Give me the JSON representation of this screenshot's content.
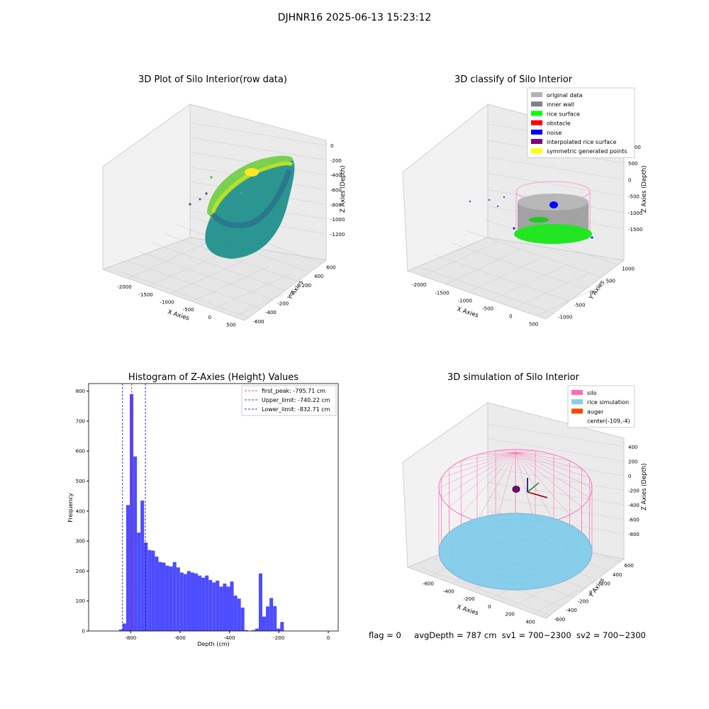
{
  "page": {
    "title": "DJHNR16 2025-06-13 15:23:12"
  },
  "status": {
    "flag": "flag = 0",
    "avg_depth": "avgDepth = 787 cm",
    "sv1": "sv1 = 700~2300",
    "sv2": "sv2 = 700~2300"
  },
  "colors": {
    "hist_bar": "#4d4dff",
    "peak_line": "#ff0000",
    "limit_line": "#0000cc",
    "pane": "#f2f2f2",
    "silo": "#ff69b4",
    "rice_sim": "#87ceeb",
    "auger": "#ff4500"
  },
  "chart_data": [
    {
      "type": "scatter3d",
      "title": "3D Plot of Silo Interior(row data)",
      "xlabel": "X Axies",
      "ylabel": "Y Axies",
      "zlabel": "Z Axies (Depth)",
      "x_ticks": [
        "-2000",
        "-1500",
        "-1000",
        "-500",
        "0",
        "500"
      ],
      "y_ticks": [
        "-600",
        "-400",
        "-200",
        "0",
        "200",
        "400",
        "600"
      ],
      "z_ticks": [
        "-1200",
        "-1000",
        "-800",
        "-600",
        "-400",
        "-200",
        "0"
      ],
      "xlim": [
        -2300,
        700
      ],
      "ylim": [
        -700,
        700
      ],
      "zlim": [
        -1300,
        50
      ],
      "colormap": "viridis"
    },
    {
      "type": "scatter3d",
      "title": "3D classify of Silo Interior",
      "xlabel": "X Axies",
      "ylabel": "Y Axies",
      "zlabel": "Z Axies (Depth)",
      "x_ticks": [
        "-2000",
        "-1500",
        "-1000",
        "-500",
        "0",
        "500"
      ],
      "y_ticks": [
        "-1000",
        "-500",
        "0",
        "500",
        "1000"
      ],
      "z_ticks": [
        "-1500",
        "-1000",
        "-500",
        "0",
        "500",
        "1000"
      ],
      "legend_position": "top-right",
      "legend": [
        {
          "label": "original data",
          "color": "#b3b3b3"
        },
        {
          "label": "inner wall",
          "color": "#808080"
        },
        {
          "label": "rice surface",
          "color": "#00ff00"
        },
        {
          "label": "obstacle",
          "color": "#ff0000"
        },
        {
          "label": "noise",
          "color": "#0000ff"
        },
        {
          "label": "interpolated rice surface",
          "color": "#800080"
        },
        {
          "label": "symmetric generated points",
          "color": "#ffff00"
        }
      ]
    },
    {
      "type": "bar",
      "title": "Histogram of Z-Axies (Height) Values",
      "xlabel": "Depth (cm)",
      "ylabel": "Frequency",
      "xlim": [
        -970,
        40
      ],
      "ylim": [
        0,
        825
      ],
      "x_ticks": [
        -800,
        -600,
        -400,
        -200,
        0
      ],
      "y_ticks": [
        0,
        100,
        200,
        300,
        400,
        500,
        600,
        700,
        800
      ],
      "bin_width": 14.5,
      "bins": [
        {
          "x": -847,
          "value": 5
        },
        {
          "x": -832.5,
          "value": 25
        },
        {
          "x": -818,
          "value": 420
        },
        {
          "x": -803.5,
          "value": 790
        },
        {
          "x": -789,
          "value": 582
        },
        {
          "x": -774.5,
          "value": 328
        },
        {
          "x": -760,
          "value": 435
        },
        {
          "x": -745.5,
          "value": 295
        },
        {
          "x": -731,
          "value": 270
        },
        {
          "x": -716.5,
          "value": 268
        },
        {
          "x": -702,
          "value": 248
        },
        {
          "x": -687.5,
          "value": 230
        },
        {
          "x": -673,
          "value": 228
        },
        {
          "x": -658.5,
          "value": 218
        },
        {
          "x": -644,
          "value": 215
        },
        {
          "x": -629.5,
          "value": 230
        },
        {
          "x": -615,
          "value": 212
        },
        {
          "x": -600.5,
          "value": 195
        },
        {
          "x": -586,
          "value": 190
        },
        {
          "x": -571.5,
          "value": 200
        },
        {
          "x": -557,
          "value": 195
        },
        {
          "x": -542.5,
          "value": 192
        },
        {
          "x": -528,
          "value": 185
        },
        {
          "x": -513.5,
          "value": 178
        },
        {
          "x": -499,
          "value": 185
        },
        {
          "x": -484.5,
          "value": 170
        },
        {
          "x": -470,
          "value": 162
        },
        {
          "x": -455.5,
          "value": 168
        },
        {
          "x": -441,
          "value": 148
        },
        {
          "x": -426.5,
          "value": 158
        },
        {
          "x": -412,
          "value": 148
        },
        {
          "x": -397.5,
          "value": 165
        },
        {
          "x": -383,
          "value": 118
        },
        {
          "x": -368.5,
          "value": 108
        },
        {
          "x": -354,
          "value": 78
        },
        {
          "x": -339.5,
          "value": 3
        },
        {
          "x": -310.5,
          "value": 3
        },
        {
          "x": -296,
          "value": 8
        },
        {
          "x": -281.5,
          "value": 192
        },
        {
          "x": -267,
          "value": 48
        },
        {
          "x": -252.5,
          "value": 82
        },
        {
          "x": -238,
          "value": 110
        },
        {
          "x": -223.5,
          "value": 83
        },
        {
          "x": -209,
          "value": 8
        },
        {
          "x": -194.5,
          "value": 30
        }
      ],
      "vlines": [
        {
          "x": -795.71,
          "label": "first_peak: -795.71 cm",
          "style": "peak"
        },
        {
          "x": -740.22,
          "label": "Upper_limit: -740.22 cm",
          "style": "limit"
        },
        {
          "x": -832.71,
          "label": "Lower_limit: -832.71 cm",
          "style": "limit"
        }
      ],
      "legend_position": "top-right"
    },
    {
      "type": "scatter3d",
      "title": "3D simulation of Silo Interior",
      "xlabel": "X Axies",
      "ylabel": "Y Axies",
      "zlabel": "Z Axies (Depth)",
      "x_ticks": [
        "-600",
        "-400",
        "-200",
        "0",
        "200",
        "400"
      ],
      "y_ticks": [
        "-600",
        "-400",
        "-200",
        "0",
        "200",
        "400",
        "600"
      ],
      "z_ticks": [
        "-800",
        "-600",
        "-400",
        "-200",
        "0",
        "200",
        "400"
      ],
      "legend_position": "top-right",
      "legend": [
        {
          "label": "silo",
          "color": "#ff69b4"
        },
        {
          "label": "rice simulation",
          "color": "#87ceeb"
        },
        {
          "label": "auger",
          "color": "#ff4500"
        },
        {
          "label": "center(-109,-4)",
          "color": ""
        }
      ]
    }
  ]
}
